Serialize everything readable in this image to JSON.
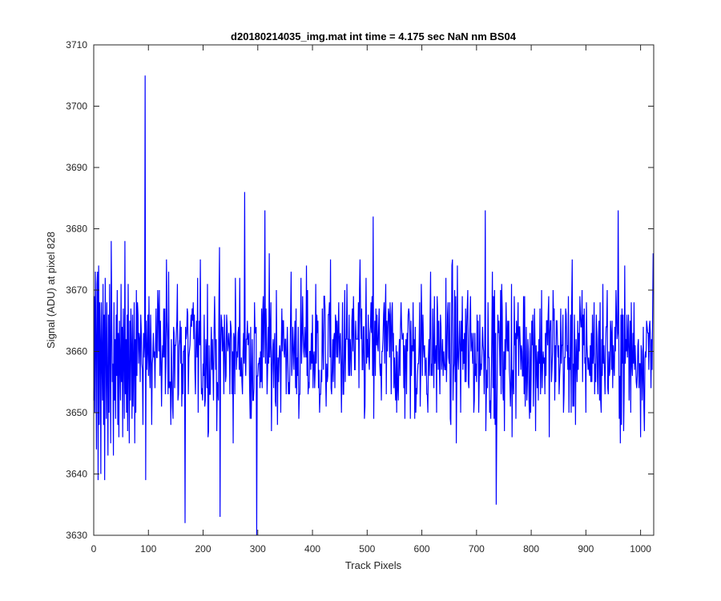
{
  "chart_data": {
    "type": "line",
    "title": "d20180214035_img.mat int time = 4.175 sec  NaN nm BS04",
    "xlabel": "Track Pixels",
    "ylabel": "Signal (ADU) at pixel 828",
    "xlim": [
      0,
      1024
    ],
    "ylim": [
      3630,
      3710
    ],
    "xticks": [
      0,
      100,
      200,
      300,
      400,
      500,
      600,
      700,
      800,
      900,
      1000
    ],
    "yticks": [
      3630,
      3640,
      3650,
      3660,
      3670,
      3680,
      3690,
      3700,
      3710
    ],
    "grid": false,
    "legend": "none",
    "series_color": "#0000ff",
    "n_points": 1024,
    "noise_baseline": 3660,
    "noise_std": 6,
    "notable_points": [
      {
        "x": 94,
        "y": 3705
      },
      {
        "x": 95,
        "y": 3639
      },
      {
        "x": 167,
        "y": 3632
      },
      {
        "x": 231,
        "y": 3633
      },
      {
        "x": 276,
        "y": 3686
      },
      {
        "x": 298,
        "y": 3630
      },
      {
        "x": 313,
        "y": 3683
      },
      {
        "x": 511,
        "y": 3682
      },
      {
        "x": 716,
        "y": 3683
      },
      {
        "x": 736,
        "y": 3635
      },
      {
        "x": 959,
        "y": 3683
      },
      {
        "x": 1023,
        "y": 3676
      }
    ],
    "series": [
      {
        "values": [
          3652,
          3669,
          3650,
          3673,
          3662,
          3644,
          3671,
          3673,
          3639,
          3674,
          3648,
          3668,
          3662,
          3640,
          3668,
          3659,
          3652,
          3671,
          3648,
          3666,
          3639,
          3672,
          3662,
          3649,
          3668,
          3656,
          3643,
          3666,
          3650,
          3671,
          3660,
          3645,
          3678,
          3665,
          3655,
          3658,
          3643,
          3668,
          3652,
          3662,
          3649,
          3666,
          3656,
          3670,
          3648,
          3663,
          3646,
          3665,
          3658,
          3652,
          3671,
          3655,
          3664,
          3646,
          3667,
          3660,
          3649,
          3678,
          3653,
          3662,
          3650,
          3666,
          3647,
          3671,
          3657,
          3645,
          3665,
          3652,
          3667,
          3661,
          3649,
          3666,
          3651,
          3658,
          3668,
          3645,
          3662,
          3650,
          3670,
          3656
        ]
      }
    ]
  }
}
